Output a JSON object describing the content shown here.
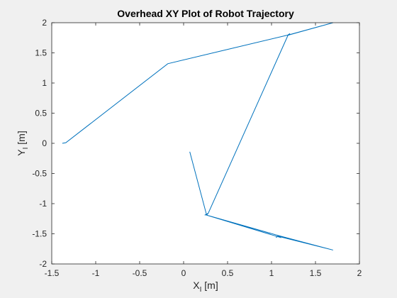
{
  "chart_data": {
    "type": "line",
    "title": "Overhead XY Plot of Robot Trajectory",
    "xlabel": {
      "main": "X",
      "sub": "I",
      "unit": "[m]"
    },
    "ylabel": {
      "main": "Y",
      "sub": "I",
      "unit": "[m]"
    },
    "xlim": [
      -1.5,
      2
    ],
    "ylim": [
      -2,
      2
    ],
    "xticks": [
      -1.5,
      -1,
      -0.5,
      0,
      0.5,
      1,
      1.5,
      2
    ],
    "xtick_labels": [
      "-1.5",
      "-1",
      "-0.5",
      "0",
      "0.5",
      "1",
      "1.5",
      "2"
    ],
    "yticks": [
      -2,
      -1.5,
      -1,
      -0.5,
      0,
      0.5,
      1,
      1.5,
      2
    ],
    "ytick_labels": [
      "-2",
      "-1.5",
      "-1",
      "-0.5",
      "0",
      "0.5",
      "1",
      "1.5",
      "2"
    ],
    "grid": false,
    "series": [
      {
        "color": "#0072BD",
        "x": [
          0.07,
          0.26,
          0.24,
          0.28,
          0.26,
          1.08,
          1.05,
          1.08,
          1.1,
          1.7,
          1.08,
          1.1,
          0.26,
          0.28,
          1.19,
          1.21,
          1.18,
          1.7,
          1.2,
          0.45,
          -0.18,
          -1.34,
          -1.38
        ],
        "y": [
          -0.14,
          -1.18,
          -1.19,
          -1.16,
          -1.19,
          -1.53,
          -1.56,
          -1.54,
          -1.55,
          -1.77,
          -1.53,
          -1.56,
          -1.19,
          -1.16,
          1.8,
          1.82,
          1.79,
          2.0,
          1.8,
          1.54,
          1.32,
          0.01,
          0.0
        ]
      }
    ]
  }
}
